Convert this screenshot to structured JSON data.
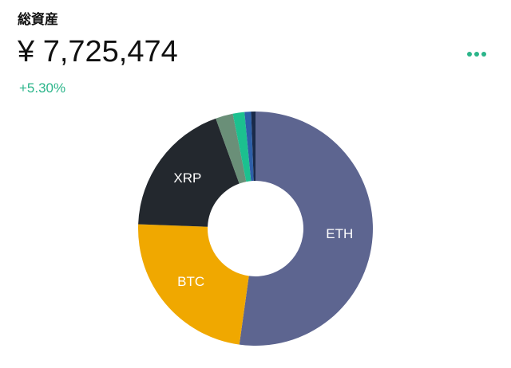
{
  "header": {
    "title": "総資産",
    "total": "¥ 7,725,474",
    "change": "+5.30%"
  },
  "chart_data": {
    "type": "donut",
    "categories": [
      "ETH",
      "BTC",
      "XRP",
      null,
      null,
      null,
      null
    ],
    "values": [
      52.2,
      23.4,
      18.9,
      2.4,
      1.6,
      0.9,
      0.6
    ],
    "colors": [
      "#5d6590",
      "#f0a800",
      "#23282e",
      "#6a8f78",
      "#1cc08f",
      "#2d5fa8",
      "#1a2a4a"
    ]
  }
}
